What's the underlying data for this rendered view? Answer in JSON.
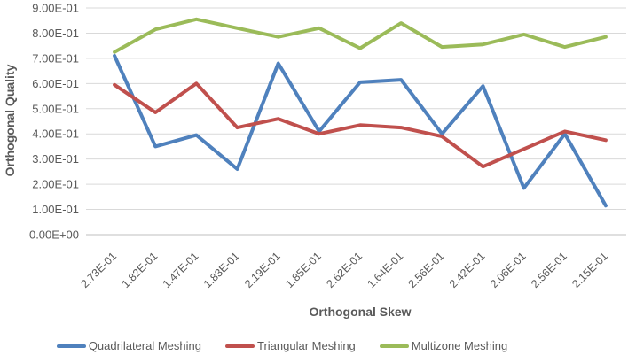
{
  "chart_data": {
    "type": "line",
    "title": "",
    "xlabel": "Orthogonal Skew",
    "ylabel": "Orthogonal Quality",
    "categories": [
      "2.73E-01",
      "1.82E-01",
      "1.47E-01",
      "1.83E-01",
      "2.19E-01",
      "1.85E-01",
      "2.62E-01",
      "1.64E-01",
      "2.56E-01",
      "2.42E-01",
      "2.06E-01",
      "2.56E-01",
      "2.15E-01"
    ],
    "series": [
      {
        "name": "Quadrilateral Meshing",
        "color": "#4F81BD",
        "values": [
          0.71,
          0.35,
          0.395,
          0.26,
          0.68,
          0.41,
          0.605,
          0.615,
          0.4,
          0.59,
          0.185,
          0.4,
          0.115
        ]
      },
      {
        "name": "Triangular Meshing",
        "color": "#C0504D",
        "values": [
          0.595,
          0.485,
          0.6,
          0.425,
          0.46,
          0.4,
          0.435,
          0.425,
          0.39,
          0.27,
          0.34,
          0.41,
          0.375
        ]
      },
      {
        "name": "Multizone Meshing",
        "color": "#9BBB59",
        "values": [
          0.725,
          0.815,
          0.855,
          0.82,
          0.785,
          0.82,
          0.74,
          0.84,
          0.745,
          0.755,
          0.795,
          0.745,
          0.785
        ]
      }
    ],
    "ylim": [
      0,
      0.9
    ],
    "y_ticks": [
      "0.00E+00",
      "1.00E-01",
      "2.00E-01",
      "3.00E-01",
      "4.00E-01",
      "5.00E-01",
      "6.00E-01",
      "7.00E-01",
      "8.00E-01",
      "9.00E-01"
    ],
    "grid": true,
    "legend_position": "bottom",
    "colors": {
      "grid": "#D9D9D9",
      "axis": "#BFBFBF",
      "text": "#595959"
    }
  }
}
